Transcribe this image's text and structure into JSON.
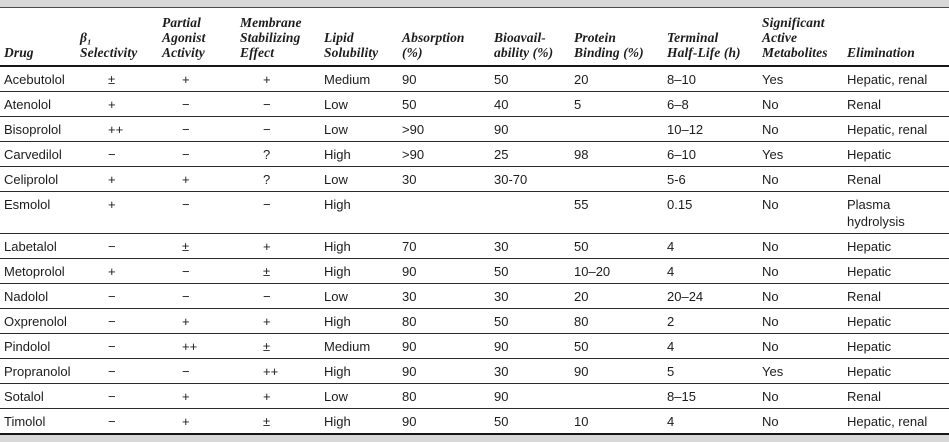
{
  "page": {
    "background_color": "#ffffff",
    "band_color": "#d8d8d8",
    "text_color": "#1c1c1c",
    "rule_color": "#161616"
  },
  "table": {
    "description": "Beta-blocker pharmacologic and pharmacokinetic properties table",
    "columns": [
      {
        "key": "drug",
        "label_lines": [
          "Drug"
        ]
      },
      {
        "key": "beta1-selectivity",
        "label_lines": [
          "β₁",
          "Selectivity"
        ]
      },
      {
        "key": "partial-agonist-activity",
        "label_lines": [
          "Partial",
          "Agonist",
          "Activity"
        ]
      },
      {
        "key": "membrane-stabilizing-effect",
        "label_lines": [
          "Membrane",
          "Stabilizing",
          "Effect"
        ]
      },
      {
        "key": "lipid-solubility",
        "label_lines": [
          "Lipid",
          "Solubility"
        ]
      },
      {
        "key": "absorption-percent",
        "label_lines": [
          "Absorption",
          "(%)"
        ]
      },
      {
        "key": "bioavailability-percent",
        "label_lines": [
          "Bioavail-",
          "ability (%)"
        ]
      },
      {
        "key": "protein-binding-percent",
        "label_lines": [
          "Protein",
          "Binding (%)"
        ]
      },
      {
        "key": "terminal-half-life-h",
        "label_lines": [
          "Terminal",
          "Half-Life (h)"
        ]
      },
      {
        "key": "significant-active-metabolites",
        "label_lines": [
          "Significant",
          "Active",
          "Metabolites"
        ]
      },
      {
        "key": "elimination",
        "label_lines": [
          "Elimination"
        ]
      }
    ],
    "rows": [
      {
        "cells": [
          "Acebutolol",
          "±",
          "+",
          "+",
          "Medium",
          "90",
          "50",
          "20",
          "8–10",
          "Yes",
          "Hepatic, renal"
        ]
      },
      {
        "cells": [
          "Atenolol",
          "+",
          "−",
          "−",
          "Low",
          "50",
          "40",
          "5",
          "6–8",
          "No",
          "Renal"
        ]
      },
      {
        "cells": [
          "Bisoprolol",
          "++",
          "−",
          "−",
          "Low",
          ">90",
          "90",
          "",
          "10–12",
          "No",
          "Hepatic, renal"
        ]
      },
      {
        "cells": [
          "Carvedilol",
          "−",
          "−",
          "?",
          "High",
          ">90",
          "25",
          "98",
          "6–10",
          "Yes",
          "Hepatic"
        ]
      },
      {
        "cells": [
          "Celiprolol",
          "+",
          "+",
          "?",
          "Low",
          "30",
          "30-70",
          "",
          "5-6",
          "No",
          "Renal"
        ]
      },
      {
        "cells": [
          "Esmolol",
          "+",
          "−",
          "−",
          "High",
          "",
          "",
          "55",
          "0.15",
          "No",
          "Plasma hydrolysis"
        ]
      },
      {
        "cells": [
          "Labetalol",
          "−",
          "±",
          "+",
          "High",
          "70",
          "30",
          "50",
          "4",
          "No",
          "Hepatic"
        ]
      },
      {
        "cells": [
          "Metoprolol",
          "+",
          "−",
          "±",
          "High",
          "90",
          "50",
          "10–20",
          "4",
          "No",
          "Hepatic"
        ]
      },
      {
        "cells": [
          "Nadolol",
          "−",
          "−",
          "−",
          "Low",
          "30",
          "30",
          "20",
          "20–24",
          "No",
          "Renal"
        ]
      },
      {
        "cells": [
          "Oxprenolol",
          "−",
          "+",
          "+",
          "High",
          "80",
          "50",
          "80",
          "2",
          "No",
          "Hepatic"
        ]
      },
      {
        "cells": [
          "Pindolol",
          "−",
          "++",
          "±",
          "Medium",
          "90",
          "90",
          "50",
          "4",
          "No",
          "Hepatic"
        ]
      },
      {
        "cells": [
          "Propranolol",
          "−",
          "−",
          "++",
          "High",
          "90",
          "30",
          "90",
          "5",
          "Yes",
          "Hepatic"
        ]
      },
      {
        "cells": [
          "Sotalol",
          "−",
          "+",
          "+",
          "Low",
          "80",
          "90",
          "",
          "8–15",
          "No",
          "Renal"
        ]
      },
      {
        "cells": [
          "Timolol",
          "−",
          "+",
          "±",
          "High",
          "90",
          "50",
          "10",
          "4",
          "No",
          "Hepatic, renal"
        ]
      }
    ]
  }
}
